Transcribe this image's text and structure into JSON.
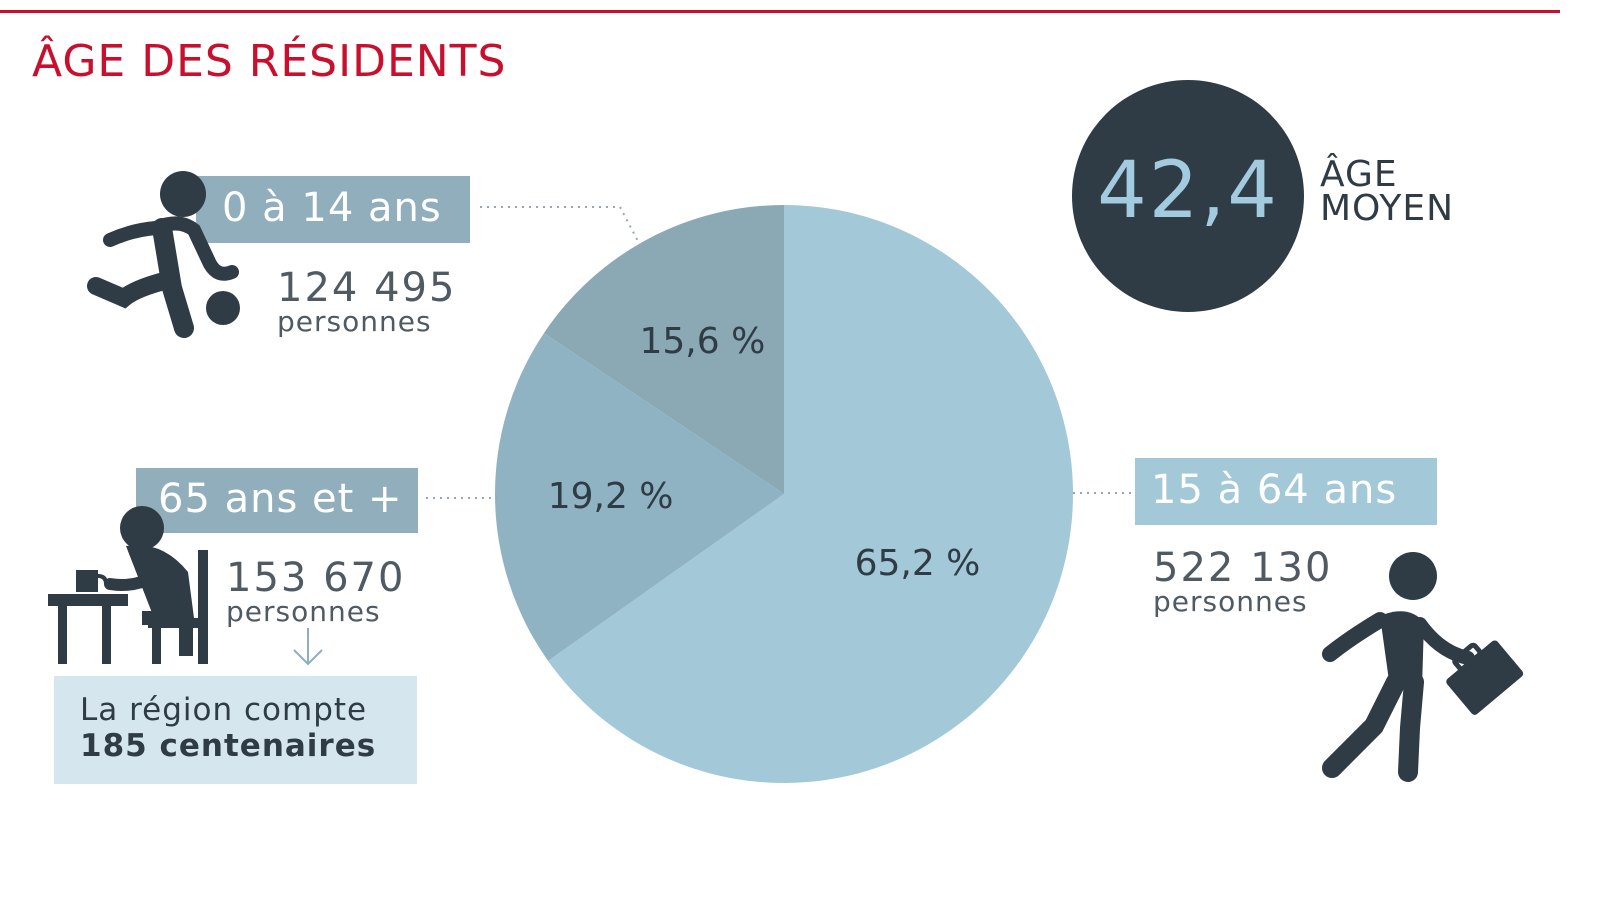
{
  "header": {
    "title": "ÂGE DES RÉSIDENTS"
  },
  "groups": [
    {
      "id": "children",
      "label": "0 à 14 ans",
      "count": "124 495",
      "unit": "personnes",
      "percent_label": "15,6 %"
    },
    {
      "id": "adults",
      "label": "15 à 64 ans",
      "count": "522 130",
      "unit": "personnes",
      "percent_label": "65,2 %"
    },
    {
      "id": "seniors",
      "label": "65 ans et +",
      "count": "153 670",
      "unit": "personnes",
      "percent_label": "19,2 %"
    }
  ],
  "average": {
    "value": "42,4",
    "label_line1": "ÂGE",
    "label_line2": "MOYEN"
  },
  "note": {
    "line1": "La région compte",
    "line2": "185 centenaires"
  },
  "icons": {
    "children": "child-kicking-ball-icon",
    "adults": "person-with-briefcase-icon",
    "seniors": "senior-at-desk-icon",
    "note_arrow": "arrow-down-icon"
  },
  "colors": {
    "title": "#c8102e",
    "children": "#8aa9b5",
    "seniors": "#90b3c3",
    "adults": "#a3c8d8",
    "dark": "#2f3b45",
    "tag_children": "#90aebb",
    "tag_seniors": "#90aebb",
    "tag_adults": "#a3c8d8",
    "note_bg": "#d5e6ee"
  },
  "chart_data": {
    "type": "pie",
    "categories": [
      "15 à 64 ans",
      "65 ans et +",
      "0 à 14 ans"
    ],
    "values": [
      65.2,
      19.2,
      15.6
    ],
    "labels": [
      "65,2 %",
      "19,2 %",
      "15,6 %"
    ],
    "counts": [
      522130,
      153670,
      124495
    ],
    "title": "ÂGE DES RÉSIDENTS"
  }
}
